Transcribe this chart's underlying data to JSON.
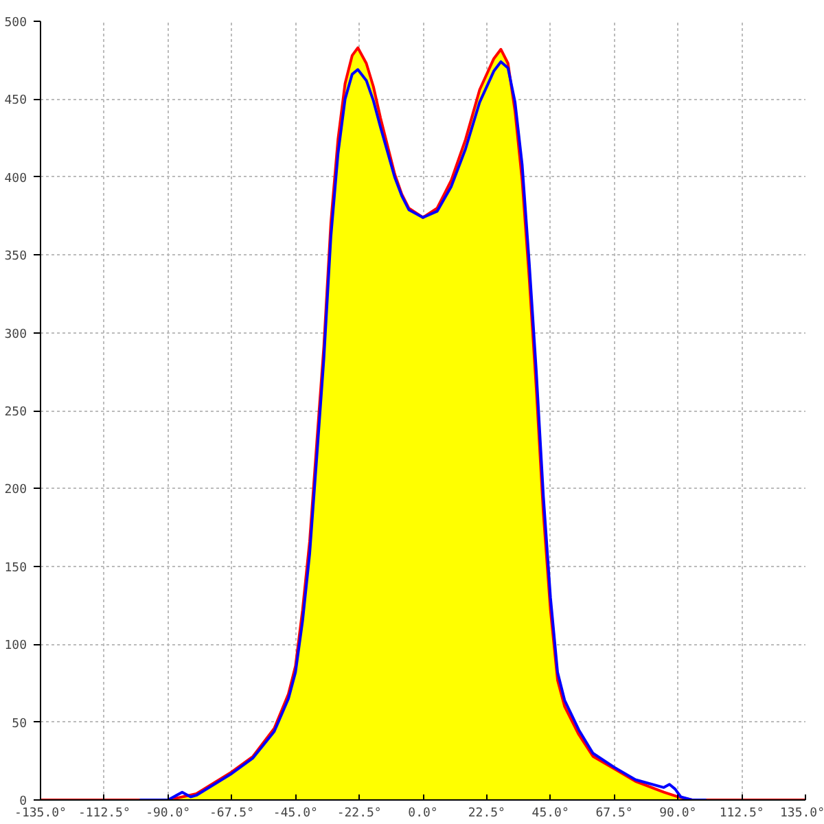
{
  "chart_data": {
    "type": "area",
    "xlim": [
      -135,
      135
    ],
    "ylim": [
      0,
      500
    ],
    "xticks": [
      {
        "value": -135,
        "label": "-135.0°"
      },
      {
        "value": -112.5,
        "label": "-112.5°"
      },
      {
        "value": -90,
        "label": "-90.0°"
      },
      {
        "value": -67.5,
        "label": "-67.5°"
      },
      {
        "value": -45,
        "label": "-45.0°"
      },
      {
        "value": -22.5,
        "label": "-22.5°"
      },
      {
        "value": 0,
        "label": "0.0°"
      },
      {
        "value": 22.5,
        "label": "22.5°"
      },
      {
        "value": 45,
        "label": "45.0°"
      },
      {
        "value": 67.5,
        "label": "67.5°"
      },
      {
        "value": 90,
        "label": "90.0°"
      },
      {
        "value": 112.5,
        "label": "112.5°"
      },
      {
        "value": 135,
        "label": "135.0°"
      }
    ],
    "yticks": [
      0,
      50,
      100,
      150,
      200,
      250,
      300,
      350,
      400,
      450,
      500
    ],
    "grid": true,
    "line_style": "solid",
    "series": [
      {
        "color": "#ffff00",
        "x": [
          -135,
          -95,
          -90,
          -80,
          -67.5,
          -60,
          -52.5,
          -47.5,
          -45,
          -42.5,
          -40,
          -37.5,
          -35,
          -32.5,
          -30,
          -27.5,
          -25,
          -23,
          -20,
          -17.5,
          -15,
          -12.5,
          -10,
          -7.5,
          -5,
          0,
          5,
          10,
          15,
          17.5,
          20,
          25,
          27.5,
          30,
          32.5,
          35,
          37.5,
          40,
          42.5,
          45,
          47.5,
          50,
          55,
          60,
          67.5,
          75,
          85,
          90,
          95,
          135
        ],
        "values": [
          0,
          0,
          0,
          4,
          18,
          28,
          46,
          68,
          86,
          122,
          166,
          229,
          291,
          371,
          424,
          460,
          478,
          483,
          473,
          458,
          438,
          420,
          402,
          389,
          380,
          374,
          380,
          398,
          424,
          440,
          456,
          476,
          482,
          473,
          442,
          398,
          335,
          264,
          184,
          122,
          77,
          60,
          42,
          28,
          20,
          12,
          5,
          2,
          0,
          0
        ]
      },
      {
        "type": "line",
        "color": "#0000ff",
        "x": [
          -100,
          -90,
          -85,
          -82,
          -80,
          -67.5,
          -60,
          -52.5,
          -47.5,
          -45,
          -42.5,
          -40,
          -37.5,
          -35,
          -32.5,
          -30,
          -27.5,
          -25,
          -23,
          -20,
          -17.5,
          -15,
          -12.5,
          -10,
          -7.5,
          -5,
          0,
          5,
          10,
          15,
          17.5,
          20,
          25,
          27.5,
          30,
          32.5,
          35,
          37.5,
          40,
          42.5,
          45,
          47.5,
          50,
          55,
          60,
          67.5,
          75,
          85,
          87,
          89,
          91,
          95,
          100
        ],
        "values": [
          0,
          0,
          5,
          2,
          3,
          17,
          27,
          44,
          65,
          82,
          115,
          158,
          220,
          283,
          362,
          415,
          450,
          466,
          469,
          462,
          449,
          432,
          416,
          400,
          388,
          379,
          374,
          378,
          394,
          418,
          433,
          448,
          468,
          474,
          470,
          448,
          408,
          345,
          275,
          195,
          130,
          82,
          64,
          45,
          30,
          21,
          13,
          8,
          10,
          7,
          2,
          0,
          0
        ]
      }
    ]
  }
}
